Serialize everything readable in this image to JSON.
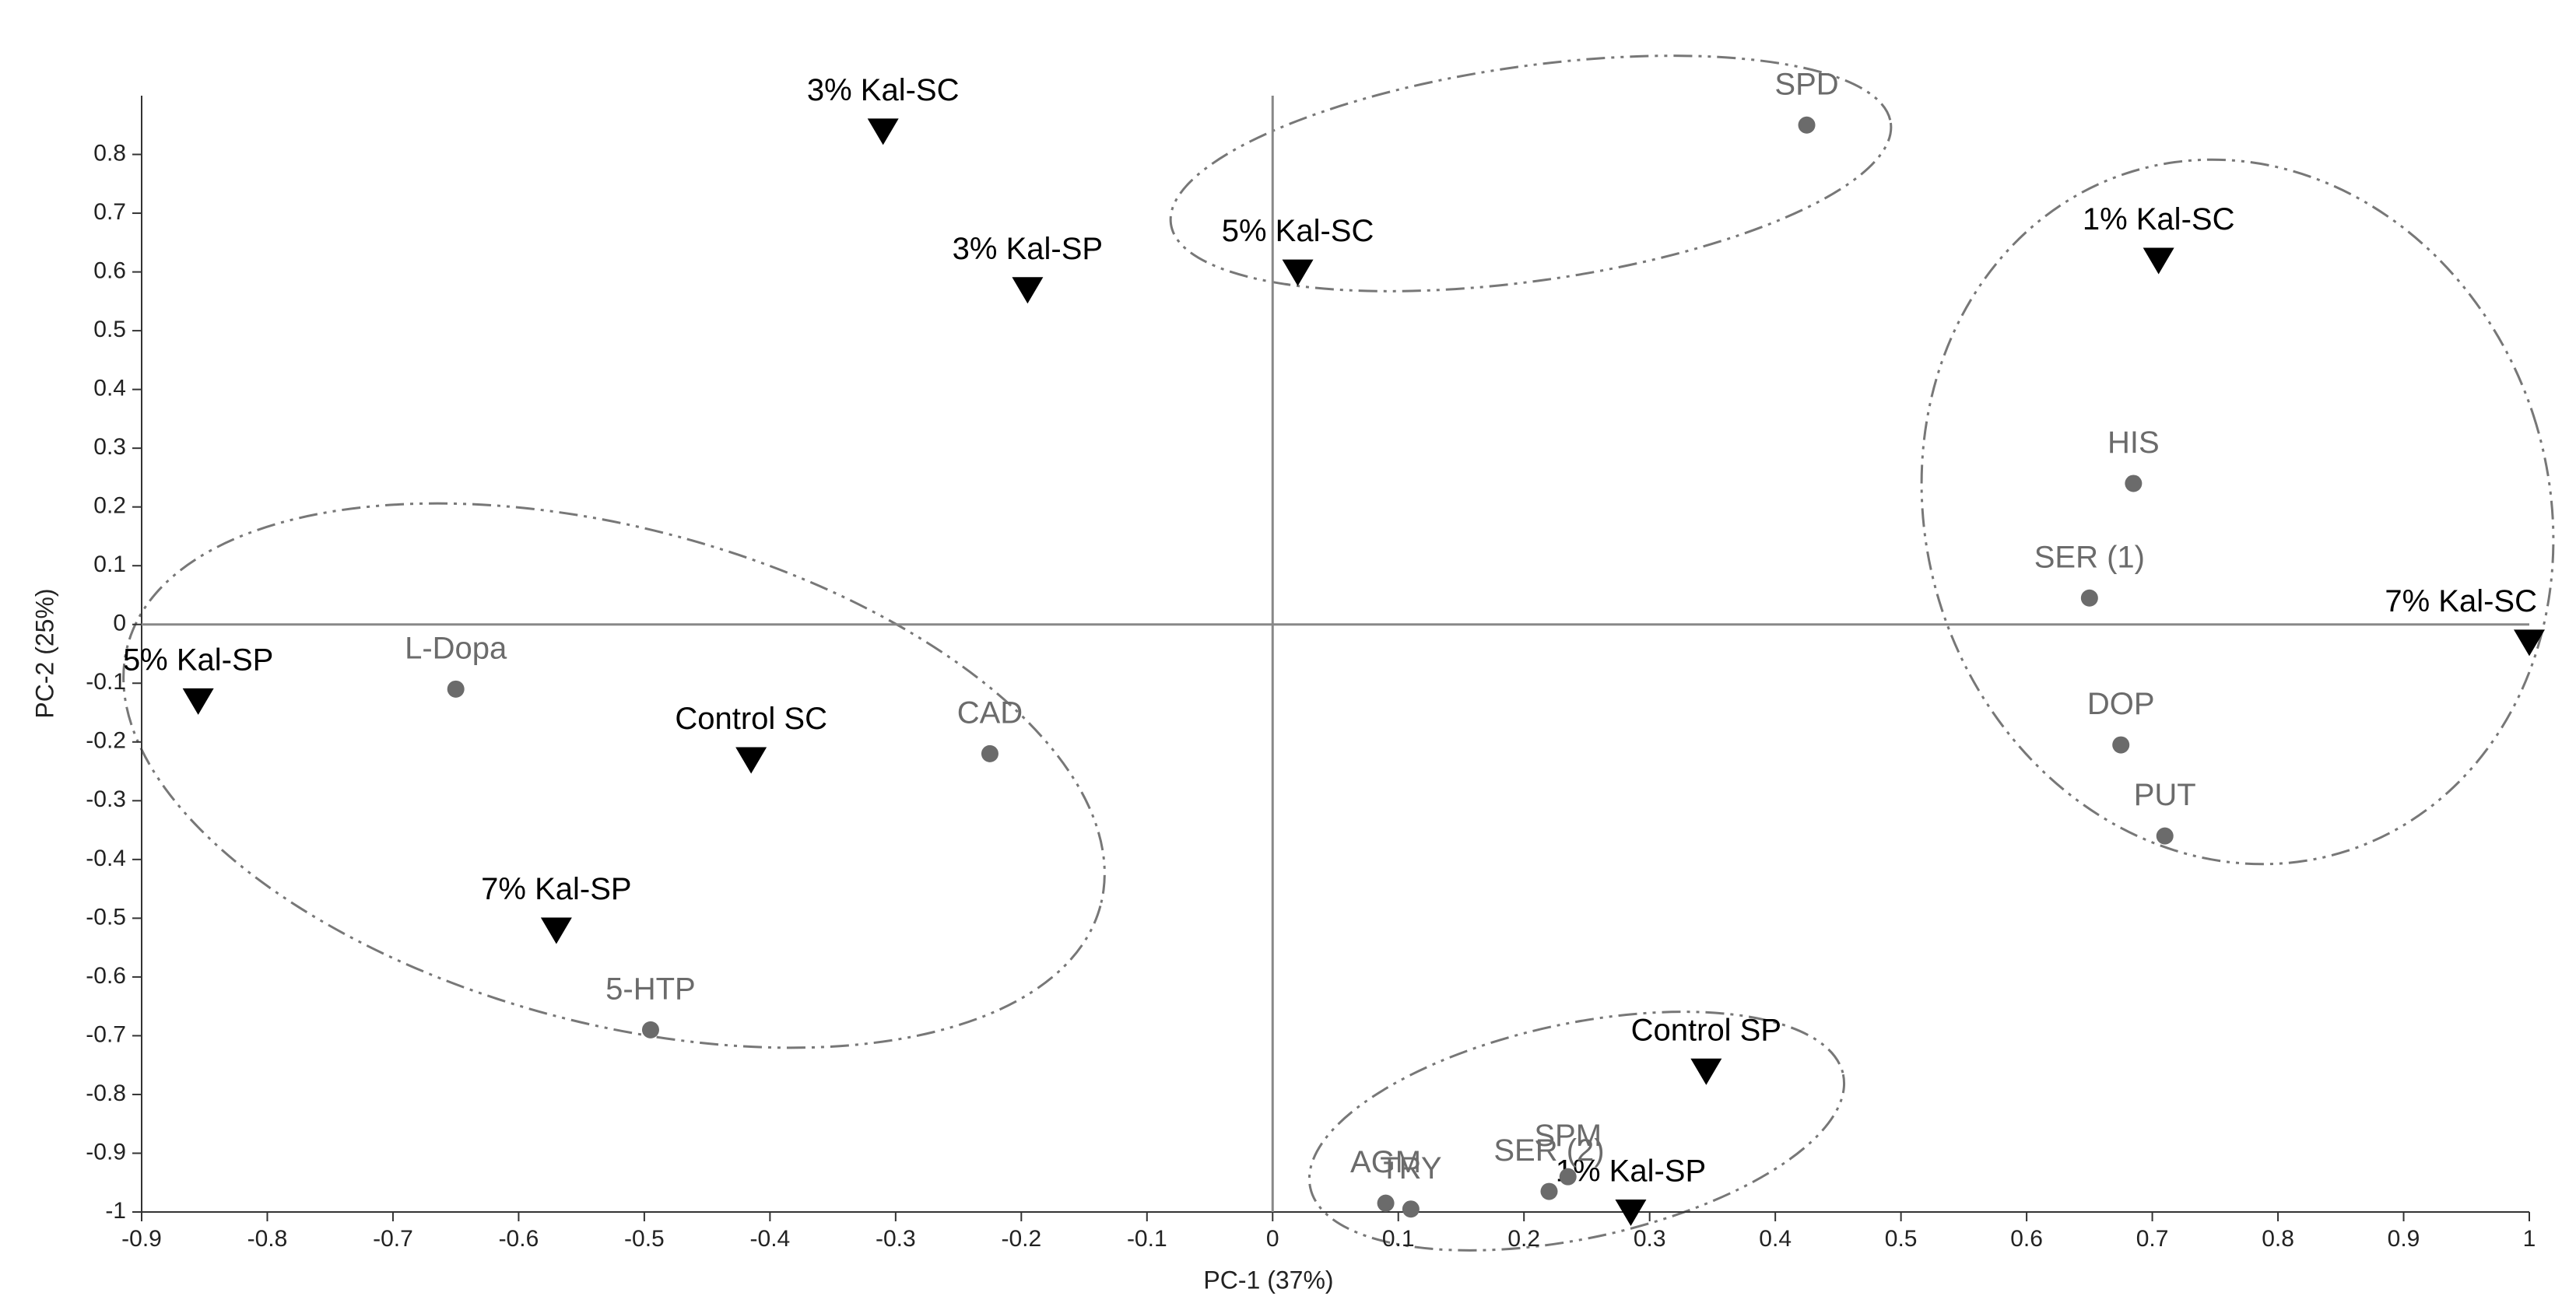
{
  "chart_data": {
    "type": "scatter",
    "xlabel": "PC-1 (37%)",
    "ylabel": "PC-2 (25%)",
    "xlim": [
      -0.9,
      1
    ],
    "ylim": [
      -1,
      0.9
    ],
    "xticks": [
      -0.9,
      -0.8,
      -0.7,
      -0.6,
      -0.5,
      -0.4,
      -0.3,
      -0.2,
      -0.1,
      0,
      0.1,
      0.2,
      0.3,
      0.4,
      0.5,
      0.6,
      0.7,
      0.8,
      0.9,
      1
    ],
    "yticks": [
      -1,
      -0.9,
      -0.8,
      -0.7,
      -0.6,
      -0.5,
      -0.4,
      -0.3,
      -0.2,
      -0.1,
      0,
      0.1,
      0.2,
      0.3,
      0.4,
      0.5,
      0.6,
      0.7,
      0.8
    ],
    "series": [
      {
        "marker": "triangle",
        "color": "#000000",
        "labels": [
          "3% Kal-SC",
          "3% Kal-SP",
          "5% Kal-SC",
          "1% Kal-SC",
          "7% Kal-SC",
          "5% Kal-SP",
          "Control SC",
          "7% Kal-SP",
          "Control SP",
          "1% Kal-SP"
        ],
        "x": [
          -0.31,
          -0.195,
          0.02,
          0.705,
          1.0,
          -0.855,
          -0.415,
          -0.57,
          0.345,
          0.285
        ],
        "y": [
          0.84,
          0.57,
          0.6,
          0.62,
          -0.03,
          -0.13,
          -0.23,
          -0.52,
          -0.76,
          -1.0
        ]
      },
      {
        "marker": "circle",
        "color": "#6b6b6b",
        "labels": [
          "SPD",
          "HIS",
          "SER (1)",
          "DOP",
          "PUT",
          "L-Dopa",
          "CAD",
          "5-HTP",
          "AGM",
          "TRY",
          "SER (2)",
          "SPM"
        ],
        "x": [
          0.425,
          0.685,
          0.65,
          0.675,
          0.71,
          -0.65,
          -0.225,
          -0.495,
          0.09,
          0.11,
          0.22,
          0.235
        ],
        "y": [
          0.85,
          0.24,
          0.045,
          -0.205,
          -0.36,
          -0.11,
          -0.22,
          -0.69,
          -0.985,
          -0.995,
          -0.965,
          -0.94
        ]
      }
    ]
  }
}
